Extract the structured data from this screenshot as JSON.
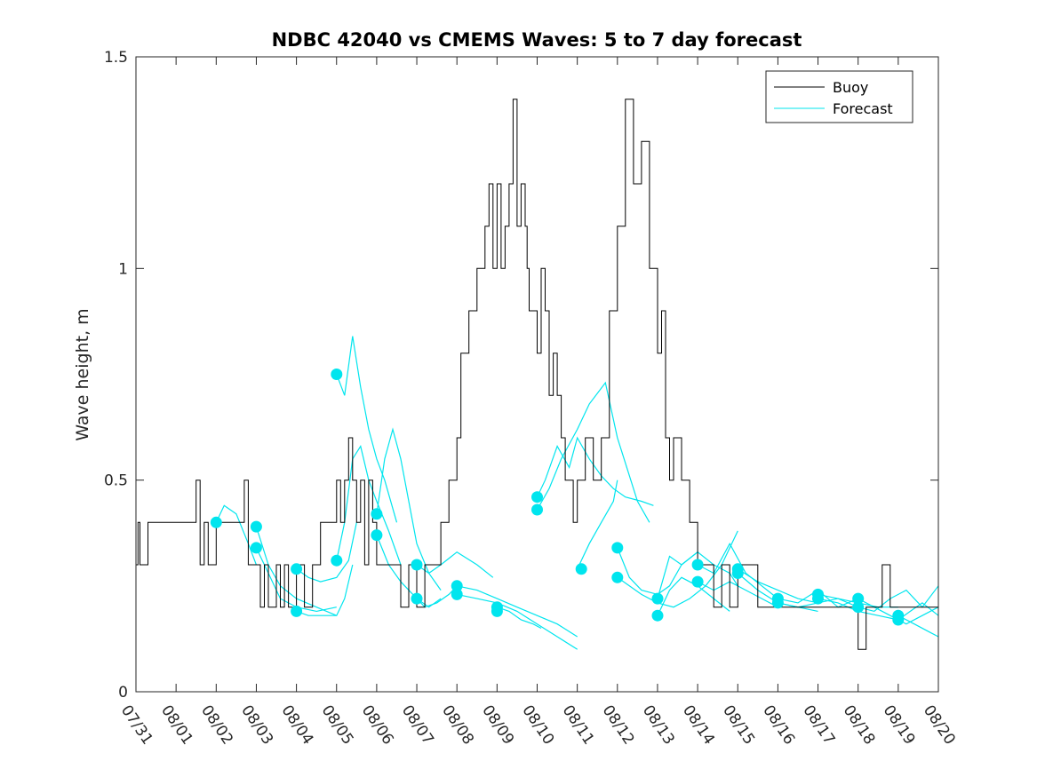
{
  "chart_data": {
    "type": "line",
    "title": "NDBC 42040 vs CMEMS Waves: 5 to 7 day forecast",
    "xlabel": "",
    "ylabel": "Wave height, m",
    "x_ticks": [
      "07/31",
      "08/01",
      "08/02",
      "08/03",
      "08/04",
      "08/05",
      "08/06",
      "08/07",
      "08/08",
      "08/09",
      "08/10",
      "08/11",
      "08/12",
      "08/13",
      "08/14",
      "08/15",
      "08/16",
      "08/17",
      "08/18",
      "08/19",
      "08/20"
    ],
    "xlim_days": [
      0,
      20
    ],
    "ylim": [
      0,
      1.5
    ],
    "y_ticks": [
      0,
      0.5,
      1,
      1.5
    ],
    "y_tick_labels": [
      "0",
      "0.5",
      "1",
      "1.5"
    ],
    "legend_position": "top-right",
    "legend": [
      "Buoy",
      "Forecast"
    ],
    "colors": {
      "buoy": "#000000",
      "forecast": "#00e5ee"
    },
    "series": [
      {
        "name": "Buoy",
        "x": [
          0,
          0.05,
          0.1,
          0.2,
          0.3,
          0.5,
          0.7,
          1.0,
          1.3,
          1.5,
          1.6,
          1.7,
          1.8,
          2.0,
          2.2,
          2.5,
          2.7,
          2.8,
          2.9,
          3.0,
          3.1,
          3.2,
          3.3,
          3.5,
          3.6,
          3.7,
          3.8,
          4.0,
          4.2,
          4.4,
          4.6,
          4.8,
          5.0,
          5.1,
          5.2,
          5.3,
          5.4,
          5.5,
          5.6,
          5.7,
          5.8,
          5.9,
          6.0,
          6.2,
          6.4,
          6.6,
          6.8,
          7.0,
          7.2,
          7.4,
          7.6,
          7.8,
          8.0,
          8.1,
          8.3,
          8.5,
          8.7,
          8.8,
          8.9,
          9.0,
          9.1,
          9.2,
          9.3,
          9.4,
          9.5,
          9.6,
          9.7,
          9.75,
          9.8,
          9.9,
          10.0,
          10.1,
          10.2,
          10.3,
          10.4,
          10.5,
          10.6,
          10.7,
          10.8,
          10.9,
          11.0,
          11.1,
          11.2,
          11.4,
          11.6,
          11.8,
          12.0,
          12.2,
          12.4,
          12.6,
          12.8,
          12.9,
          13.0,
          13.1,
          13.2,
          13.3,
          13.4,
          13.5,
          13.6,
          13.7,
          13.8,
          14.0,
          14.2,
          14.4,
          14.6,
          14.8,
          15.0,
          15.2,
          15.5,
          16.0,
          16.5,
          17.0,
          17.5,
          18.0,
          18.2,
          18.4,
          18.6,
          18.8,
          19.0,
          19.2,
          19.4,
          19.6,
          19.8,
          20.0
        ],
        "values": [
          0.3,
          0.4,
          0.3,
          0.3,
          0.4,
          0.4,
          0.4,
          0.4,
          0.4,
          0.5,
          0.3,
          0.4,
          0.3,
          0.4,
          0.4,
          0.4,
          0.5,
          0.3,
          0.3,
          0.3,
          0.2,
          0.3,
          0.2,
          0.3,
          0.2,
          0.3,
          0.2,
          0.3,
          0.2,
          0.3,
          0.4,
          0.4,
          0.5,
          0.4,
          0.5,
          0.6,
          0.5,
          0.4,
          0.5,
          0.3,
          0.5,
          0.4,
          0.3,
          0.3,
          0.3,
          0.2,
          0.3,
          0.2,
          0.3,
          0.3,
          0.4,
          0.5,
          0.6,
          0.8,
          0.9,
          1.0,
          1.1,
          1.2,
          1.0,
          1.2,
          1.0,
          1.1,
          1.2,
          1.4,
          1.1,
          1.2,
          1.1,
          1.0,
          0.9,
          0.9,
          0.8,
          1.0,
          0.9,
          0.7,
          0.8,
          0.7,
          0.6,
          0.5,
          0.5,
          0.4,
          0.5,
          0.5,
          0.6,
          0.5,
          0.6,
          0.9,
          1.1,
          1.4,
          1.2,
          1.3,
          1.0,
          1.0,
          0.8,
          0.9,
          0.6,
          0.5,
          0.6,
          0.6,
          0.5,
          0.5,
          0.4,
          0.3,
          0.3,
          0.2,
          0.3,
          0.2,
          0.3,
          0.3,
          0.2,
          0.2,
          0.2,
          0.2,
          0.2,
          0.1,
          0.2,
          0.2,
          0.3,
          0.2,
          0.2,
          0.2,
          0.2,
          0.2,
          0.2,
          0.2
        ]
      },
      {
        "name": "Forecast",
        "segments": [
          {
            "x": [
              2.0,
              2.2,
              2.5,
              2.8,
              3.0
            ],
            "values": [
              0.4,
              0.44,
              0.42,
              0.35,
              0.3
            ]
          },
          {
            "x": [
              3.0,
              3.3,
              3.6,
              4.0,
              4.5,
              5.0
            ],
            "values": [
              0.39,
              0.3,
              0.25,
              0.22,
              0.2,
              0.18
            ]
          },
          {
            "x": [
              3.0,
              3.3,
              3.6,
              4.0,
              4.5,
              5.0
            ],
            "values": [
              0.34,
              0.28,
              0.22,
              0.2,
              0.19,
              0.2
            ]
          },
          {
            "x": [
              4.0,
              4.3,
              4.6,
              5.0,
              5.3,
              5.5
            ],
            "values": [
              0.29,
              0.27,
              0.26,
              0.27,
              0.31,
              0.4
            ]
          },
          {
            "x": [
              4.0,
              4.3,
              4.6,
              5.0,
              5.2,
              5.4
            ],
            "values": [
              0.19,
              0.18,
              0.18,
              0.18,
              0.22,
              0.3
            ]
          },
          {
            "x": [
              5.0,
              5.2,
              5.4,
              5.6,
              5.8,
              6.0,
              6.2,
              6.5
            ],
            "values": [
              0.75,
              0.7,
              0.84,
              0.72,
              0.62,
              0.55,
              0.5,
              0.4
            ]
          },
          {
            "x": [
              5.0,
              5.2,
              5.4,
              5.6,
              5.8,
              6.0,
              6.3,
              6.6
            ],
            "values": [
              0.31,
              0.4,
              0.55,
              0.58,
              0.5,
              0.45,
              0.38,
              0.3
            ]
          },
          {
            "x": [
              6.0,
              6.2,
              6.4,
              6.6,
              6.8,
              7.0,
              7.3,
              7.6
            ],
            "values": [
              0.42,
              0.55,
              0.62,
              0.55,
              0.45,
              0.35,
              0.28,
              0.24
            ]
          },
          {
            "x": [
              6.0,
              6.3,
              6.6,
              7.0,
              7.3,
              7.6
            ],
            "values": [
              0.37,
              0.3,
              0.26,
              0.22,
              0.2,
              0.22
            ]
          },
          {
            "x": [
              7.0,
              7.3,
              7.6,
              8.0,
              8.5,
              8.9
            ],
            "values": [
              0.3,
              0.28,
              0.3,
              0.33,
              0.3,
              0.27
            ]
          },
          {
            "x": [
              7.0,
              7.2,
              7.5,
              7.8,
              8.0
            ],
            "values": [
              0.22,
              0.2,
              0.21,
              0.23,
              0.25
            ]
          },
          {
            "x": [
              8.0,
              8.5,
              9.0,
              9.5,
              10.0,
              10.5,
              11.0
            ],
            "values": [
              0.25,
              0.24,
              0.22,
              0.2,
              0.18,
              0.16,
              0.13
            ]
          },
          {
            "x": [
              8.0,
              8.5,
              9.0,
              9.5,
              10.0,
              10.5,
              11.0
            ],
            "values": [
              0.23,
              0.22,
              0.21,
              0.19,
              0.16,
              0.13,
              0.1
            ]
          },
          {
            "x": [
              9.0,
              9.3,
              9.6,
              9.9,
              10.1
            ],
            "values": [
              0.2,
              0.19,
              0.17,
              0.16,
              0.15
            ]
          },
          {
            "x": [
              10.0,
              10.2,
              10.5,
              10.8,
              11.0,
              11.3,
              11.6,
              11.9,
              12.2,
              12.6,
              12.9
            ],
            "values": [
              0.46,
              0.5,
              0.58,
              0.53,
              0.6,
              0.55,
              0.51,
              0.48,
              0.46,
              0.45,
              0.44
            ]
          },
          {
            "x": [
              10.0,
              10.3,
              10.6,
              11.0,
              11.3,
              11.7,
              12.0,
              12.5,
              12.8
            ],
            "values": [
              0.43,
              0.48,
              0.55,
              0.62,
              0.68,
              0.73,
              0.6,
              0.45,
              0.4
            ]
          },
          {
            "x": [
              11.0,
              11.3,
              11.6,
              11.9,
              12.0
            ],
            "values": [
              0.29,
              0.35,
              0.4,
              0.45,
              0.5
            ]
          },
          {
            "x": [
              12.0,
              12.3,
              12.6,
              13.0,
              13.3,
              13.6,
              14.0
            ],
            "values": [
              0.34,
              0.27,
              0.24,
              0.23,
              0.25,
              0.3,
              0.33
            ]
          },
          {
            "x": [
              12.0,
              12.3,
              12.6,
              13.0,
              13.4,
              13.8,
              14.2,
              14.6,
              15.0
            ],
            "values": [
              0.27,
              0.25,
              0.23,
              0.21,
              0.2,
              0.22,
              0.25,
              0.3,
              0.38
            ]
          },
          {
            "x": [
              13.0,
              13.3,
              13.6,
              14.0,
              14.4,
              14.8,
              15.0
            ],
            "values": [
              0.22,
              0.32,
              0.3,
              0.33,
              0.3,
              0.28,
              0.25
            ]
          },
          {
            "x": [
              13.0,
              13.3,
              13.6,
              14.0,
              14.4,
              14.8
            ],
            "values": [
              0.18,
              0.24,
              0.27,
              0.25,
              0.22,
              0.19
            ]
          },
          {
            "x": [
              14.0,
              14.4,
              14.8,
              15.2,
              15.6,
              16.0
            ],
            "values": [
              0.3,
              0.28,
              0.35,
              0.28,
              0.25,
              0.22
            ]
          },
          {
            "x": [
              14.0,
              14.4,
              14.8,
              15.2,
              15.6,
              16.0
            ],
            "values": [
              0.26,
              0.24,
              0.26,
              0.24,
              0.22,
              0.2
            ]
          },
          {
            "x": [
              15.0,
              15.5,
              16.0,
              16.5,
              17.0
            ],
            "values": [
              0.29,
              0.26,
              0.24,
              0.22,
              0.21
            ]
          },
          {
            "x": [
              15.0,
              15.5,
              16.0,
              16.5,
              17.0
            ],
            "values": [
              0.28,
              0.24,
              0.21,
              0.2,
              0.19
            ]
          },
          {
            "x": [
              16.0,
              16.5,
              17.0,
              17.5,
              18.0
            ],
            "values": [
              0.22,
              0.21,
              0.24,
              0.2,
              0.22
            ]
          },
          {
            "x": [
              16.0,
              16.5,
              17.0,
              17.5,
              18.0
            ],
            "values": [
              0.21,
              0.2,
              0.21,
              0.22,
              0.2
            ]
          },
          {
            "x": [
              17.0,
              17.5,
              18.0,
              18.5,
              19.0
            ],
            "values": [
              0.23,
              0.22,
              0.21,
              0.2,
              0.2
            ]
          },
          {
            "x": [
              17.0,
              17.5,
              18.0,
              18.5,
              19.0
            ],
            "values": [
              0.22,
              0.21,
              0.19,
              0.18,
              0.17
            ]
          },
          {
            "x": [
              18.0,
              18.4,
              18.8,
              19.2,
              19.6,
              20.0
            ],
            "values": [
              0.22,
              0.2,
              0.18,
              0.16,
              0.18,
              0.2
            ]
          },
          {
            "x": [
              18.0,
              18.4,
              18.8,
              19.2,
              19.6,
              20.0
            ],
            "values": [
              0.2,
              0.19,
              0.22,
              0.24,
              0.2,
              0.25
            ]
          },
          {
            "x": [
              19.0,
              19.4,
              19.8,
              20.0
            ],
            "values": [
              0.18,
              0.16,
              0.14,
              0.13
            ]
          },
          {
            "x": [
              19.0,
              19.3,
              19.6,
              20.0
            ],
            "values": [
              0.17,
              0.19,
              0.21,
              0.18
            ]
          }
        ],
        "markers": [
          {
            "x": 2.0,
            "y": 0.4
          },
          {
            "x": 3.0,
            "y": 0.39
          },
          {
            "x": 3.0,
            "y": 0.34
          },
          {
            "x": 4.0,
            "y": 0.29
          },
          {
            "x": 4.0,
            "y": 0.19
          },
          {
            "x": 5.0,
            "y": 0.75
          },
          {
            "x": 5.0,
            "y": 0.31
          },
          {
            "x": 6.0,
            "y": 0.42
          },
          {
            "x": 6.0,
            "y": 0.37
          },
          {
            "x": 7.0,
            "y": 0.3
          },
          {
            "x": 7.0,
            "y": 0.22
          },
          {
            "x": 8.0,
            "y": 0.25
          },
          {
            "x": 8.0,
            "y": 0.23
          },
          {
            "x": 9.0,
            "y": 0.2
          },
          {
            "x": 9.0,
            "y": 0.19
          },
          {
            "x": 10.0,
            "y": 0.46
          },
          {
            "x": 10.0,
            "y": 0.43
          },
          {
            "x": 11.1,
            "y": 0.29
          },
          {
            "x": 12.0,
            "y": 0.34
          },
          {
            "x": 12.0,
            "y": 0.27
          },
          {
            "x": 13.0,
            "y": 0.22
          },
          {
            "x": 13.0,
            "y": 0.18
          },
          {
            "x": 14.0,
            "y": 0.3
          },
          {
            "x": 14.0,
            "y": 0.26
          },
          {
            "x": 15.0,
            "y": 0.29
          },
          {
            "x": 15.0,
            "y": 0.28
          },
          {
            "x": 16.0,
            "y": 0.22
          },
          {
            "x": 16.0,
            "y": 0.21
          },
          {
            "x": 17.0,
            "y": 0.23
          },
          {
            "x": 17.0,
            "y": 0.22
          },
          {
            "x": 18.0,
            "y": 0.22
          },
          {
            "x": 18.0,
            "y": 0.2
          },
          {
            "x": 19.0,
            "y": 0.18
          },
          {
            "x": 19.0,
            "y": 0.17
          }
        ]
      }
    ]
  }
}
